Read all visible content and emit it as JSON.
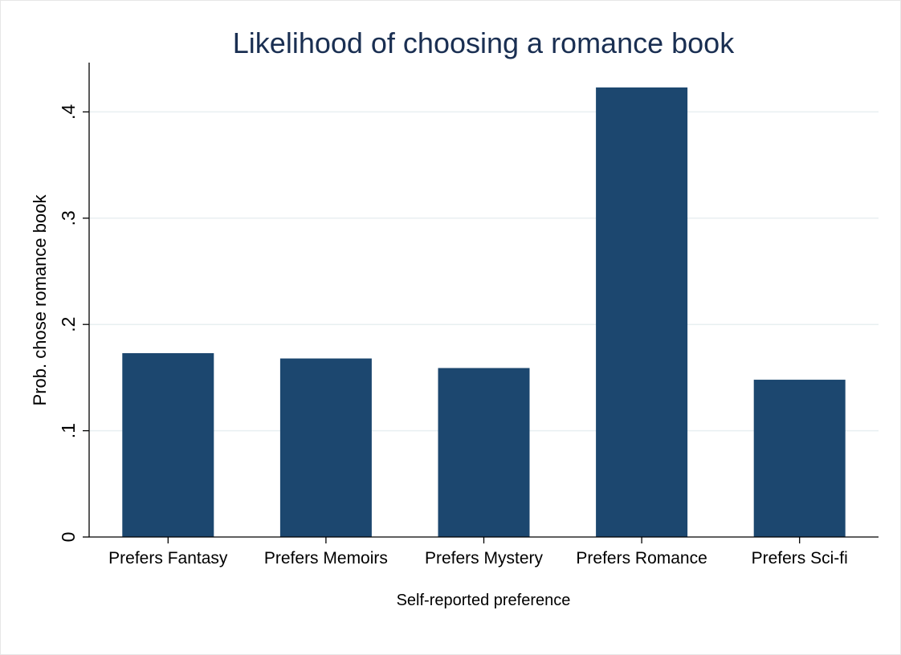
{
  "chart_data": {
    "type": "bar",
    "title": "Likelihood of choosing a romance book",
    "xlabel": "Self-reported preference",
    "ylabel": "Prob. chose romance book",
    "categories": [
      "Prefers Fantasy",
      "Prefers Memoirs",
      "Prefers Mystery",
      "Prefers Romance",
      "Prefers Sci-fi"
    ],
    "values": [
      0.173,
      0.168,
      0.159,
      0.423,
      0.148
    ],
    "ylim": [
      0,
      0.44
    ],
    "yticks": [
      0,
      0.1,
      0.2,
      0.3,
      0.4
    ],
    "ytick_labels": [
      "0",
      ".1",
      ".2",
      ".3",
      ".4"
    ],
    "grid": true,
    "legend": "none",
    "colors": {
      "bar": "#1c476f",
      "grid": "#e8eff1",
      "title": "#1a2f52",
      "axis": "#000000"
    }
  }
}
